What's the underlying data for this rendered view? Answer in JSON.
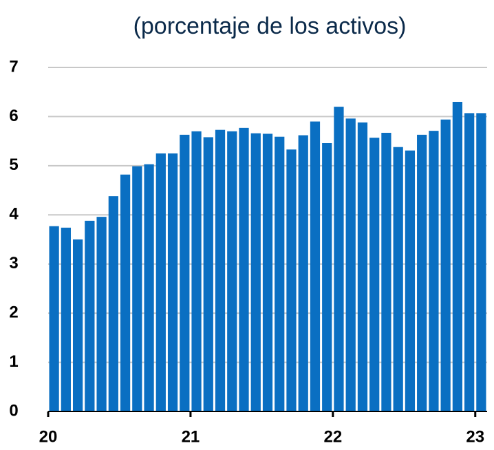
{
  "chart_data": {
    "type": "bar",
    "title": "(porcentaje de los activos)",
    "x": [
      2020,
      2020.0833,
      2020.1667,
      2020.25,
      2020.3333,
      2020.4167,
      2020.5,
      2020.5833,
      2020.6667,
      2020.75,
      2020.8333,
      2020.9167,
      2021,
      2021.0833,
      2021.1667,
      2021.25,
      2021.3333,
      2021.4167,
      2021.5,
      2021.5833,
      2021.6667,
      2021.75,
      2021.8333,
      2021.9167,
      2022,
      2022.0833,
      2022.1667,
      2022.25,
      2022.3333,
      2022.4167,
      2022.5,
      2022.5833,
      2022.6667,
      2022.75,
      2022.8333,
      2022.9167,
      2023
    ],
    "values": [
      3.77,
      3.74,
      3.5,
      3.88,
      3.96,
      4.38,
      4.82,
      4.99,
      5.03,
      5.25,
      5.25,
      5.63,
      5.7,
      5.58,
      5.73,
      5.7,
      5.77,
      5.66,
      5.65,
      5.59,
      5.33,
      5.62,
      5.9,
      5.46,
      6.2,
      5.96,
      5.88,
      5.57,
      5.67,
      5.38,
      5.31,
      5.63,
      5.71,
      5.94,
      6.3,
      6.07,
      6.07
    ],
    "color": "#0a6fc2",
    "xlim": [
      2020,
      2023.0833
    ],
    "xticks": [
      {
        "value": 2020,
        "label": "20"
      },
      {
        "value": 2021,
        "label": "21"
      },
      {
        "value": 2022,
        "label": "22"
      },
      {
        "value": 2023,
        "label": "23"
      }
    ],
    "ylim": [
      0,
      7
    ],
    "yticks": [
      0,
      1,
      2,
      3,
      4,
      5,
      6,
      7
    ],
    "grid": true
  }
}
